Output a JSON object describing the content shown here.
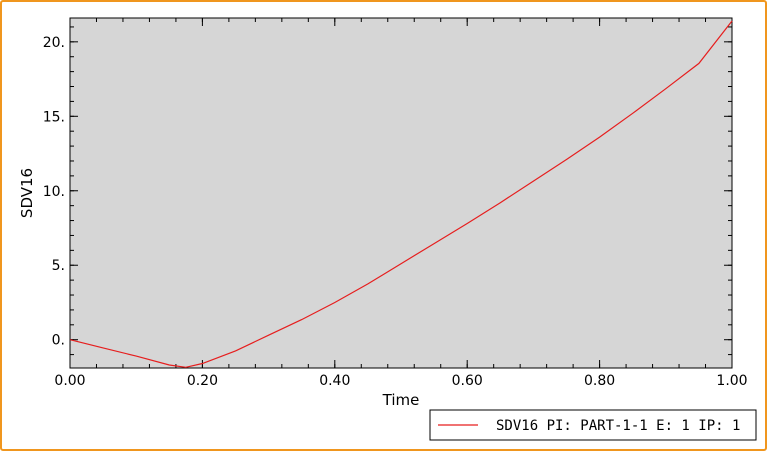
{
  "colors": {
    "frame_border": "#f0961e",
    "plot_background": "#d6d6d6",
    "series_line": "#e61e1e"
  },
  "chart_data": {
    "type": "line",
    "xlabel": "Time",
    "ylabel": "SDV16",
    "xlim": [
      0.0,
      1.0
    ],
    "ylim": [
      -1.9,
      21.6
    ],
    "xticks": [
      "0.00",
      "0.20",
      "0.40",
      "0.60",
      "0.80",
      "1.00"
    ],
    "yticks": [
      "0.",
      "5.",
      "10.",
      "15.",
      "20."
    ],
    "xtick_values": [
      0.0,
      0.2,
      0.4,
      0.6,
      0.8,
      1.0
    ],
    "ytick_values": [
      0,
      5,
      10,
      15,
      20
    ],
    "grid": false,
    "legend_position": "bottom-right",
    "series": [
      {
        "name": "SDV16 PI: PART-1-1 E: 1 IP: 1",
        "x": [
          0.0,
          0.05,
          0.1,
          0.15,
          0.175,
          0.2,
          0.25,
          0.3,
          0.35,
          0.4,
          0.45,
          0.5,
          0.55,
          0.6,
          0.65,
          0.7,
          0.75,
          0.8,
          0.85,
          0.9,
          0.95,
          1.0
        ],
        "y": [
          0.0,
          -0.55,
          -1.1,
          -1.7,
          -1.85,
          -1.6,
          -0.75,
          0.3,
          1.35,
          2.5,
          3.75,
          5.1,
          6.45,
          7.8,
          9.2,
          10.65,
          12.1,
          13.6,
          15.2,
          16.85,
          18.55,
          21.4
        ]
      }
    ]
  }
}
